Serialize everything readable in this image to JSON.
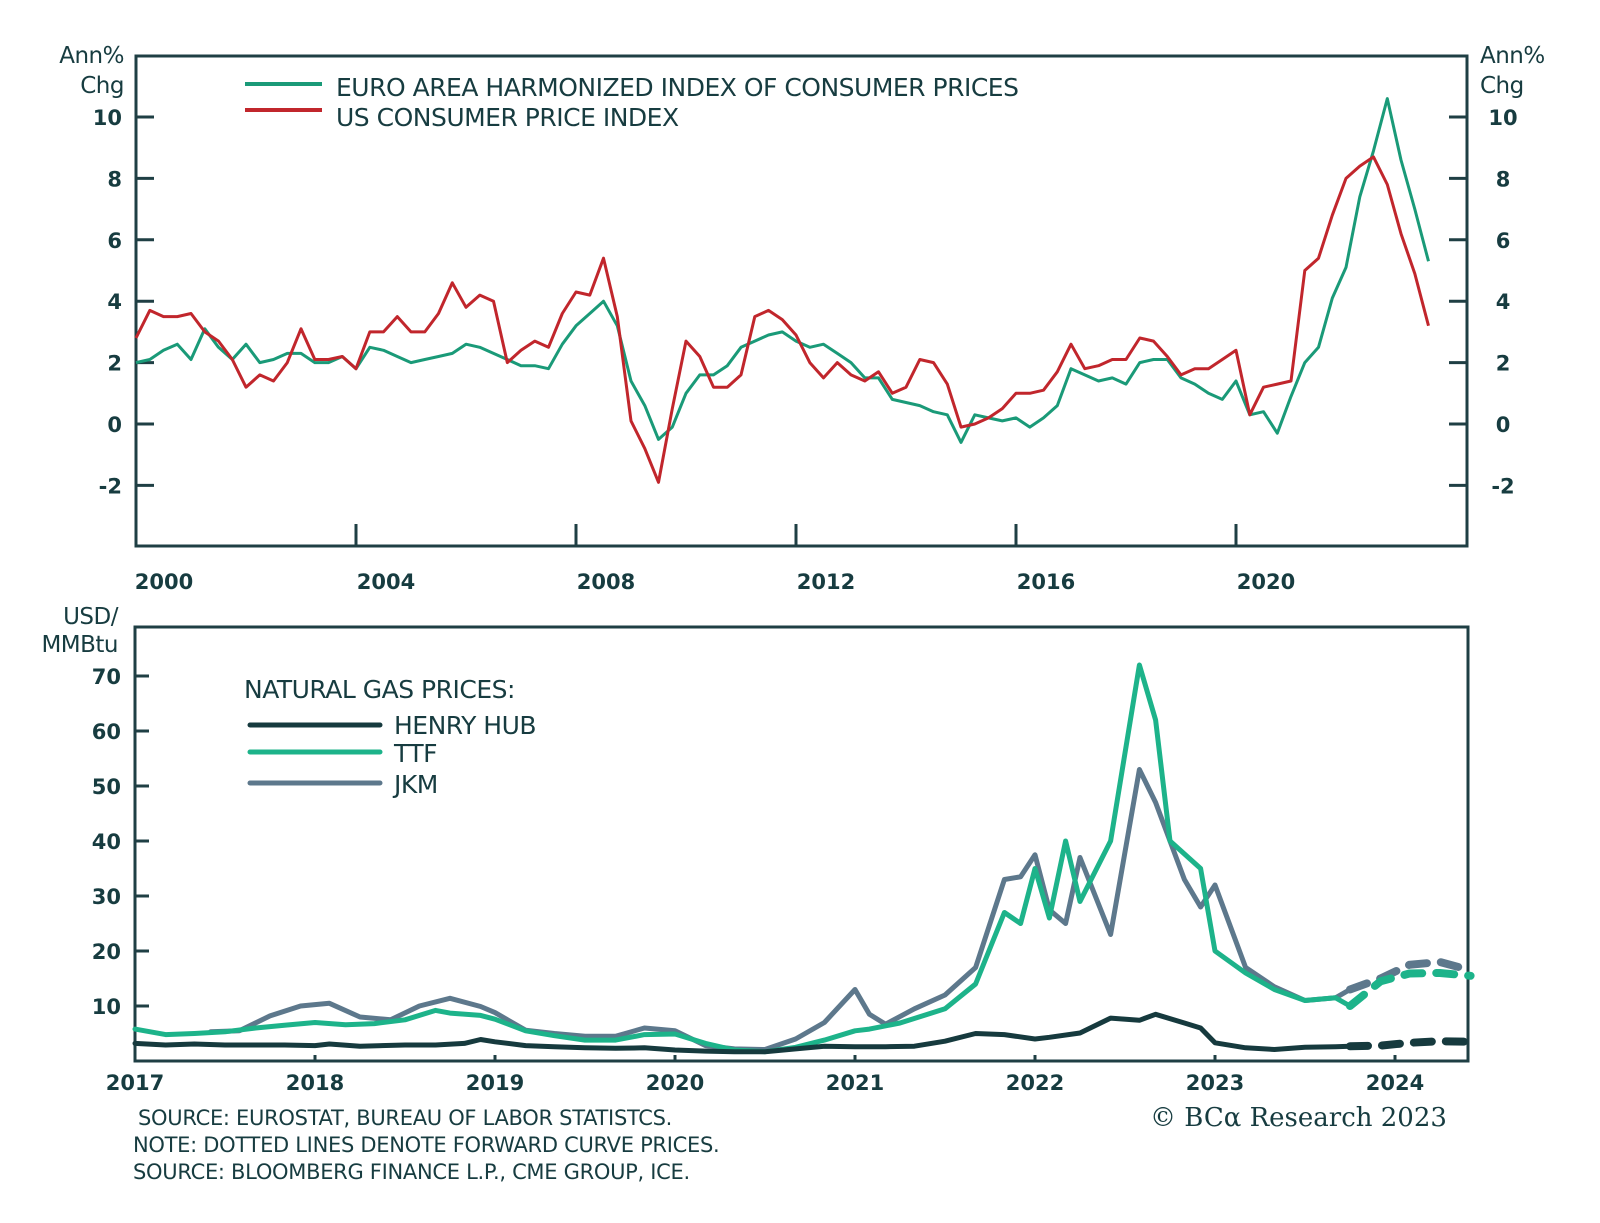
{
  "chart_data": [
    {
      "type": "line",
      "title": "",
      "ylabel_left": [
        "Ann%",
        "Chg"
      ],
      "ylabel_right": [
        "Ann%",
        "Chg"
      ],
      "xlabel": "",
      "ylim": [
        -4,
        12
      ],
      "yticks": [
        -2,
        0,
        2,
        4,
        6,
        8,
        10
      ],
      "xlim": [
        2000,
        2024
      ],
      "xticks": [
        2000,
        2004,
        2008,
        2012,
        2016,
        2020
      ],
      "legend_placement": "top-left",
      "series": [
        {
          "name": "EURO AREA HARMONIZED INDEX OF CONSUMER PRICES",
          "color": "#1a9a78",
          "x": [
            2000.0,
            2000.25,
            2000.5,
            2000.75,
            2001.0,
            2001.25,
            2001.5,
            2001.75,
            2002.0,
            2002.25,
            2002.5,
            2002.75,
            2003.0,
            2003.25,
            2003.5,
            2003.75,
            2004.0,
            2004.25,
            2004.5,
            2004.75,
            2005.0,
            2005.25,
            2005.5,
            2005.75,
            2006.0,
            2006.25,
            2006.5,
            2006.75,
            2007.0,
            2007.25,
            2007.5,
            2007.75,
            2008.0,
            2008.25,
            2008.5,
            2008.75,
            2009.0,
            2009.25,
            2009.5,
            2009.75,
            2010.0,
            2010.25,
            2010.5,
            2010.75,
            2011.0,
            2011.25,
            2011.5,
            2011.75,
            2012.0,
            2012.25,
            2012.5,
            2012.75,
            2013.0,
            2013.25,
            2013.5,
            2013.75,
            2014.0,
            2014.25,
            2014.5,
            2014.75,
            2015.0,
            2015.25,
            2015.5,
            2015.75,
            2016.0,
            2016.25,
            2016.5,
            2016.75,
            2017.0,
            2017.25,
            2017.5,
            2017.75,
            2018.0,
            2018.25,
            2018.5,
            2018.75,
            2019.0,
            2019.25,
            2019.5,
            2019.75,
            2020.0,
            2020.25,
            2020.5,
            2020.75,
            2021.0,
            2021.25,
            2021.5,
            2021.75,
            2022.0,
            2022.25,
            2022.5,
            2022.75,
            2023.0,
            2023.25,
            2023.5
          ],
          "values": [
            2.0,
            2.1,
            2.4,
            2.6,
            2.1,
            3.1,
            2.5,
            2.1,
            2.6,
            2.0,
            2.1,
            2.3,
            2.3,
            2.0,
            2.0,
            2.2,
            1.8,
            2.5,
            2.4,
            2.2,
            2.0,
            2.1,
            2.2,
            2.3,
            2.6,
            2.5,
            2.3,
            2.1,
            1.9,
            1.9,
            1.8,
            2.6,
            3.2,
            3.6,
            4.0,
            3.2,
            1.4,
            0.6,
            -0.5,
            -0.1,
            1.0,
            1.6,
            1.6,
            1.9,
            2.5,
            2.7,
            2.9,
            3.0,
            2.7,
            2.5,
            2.6,
            2.3,
            2.0,
            1.5,
            1.5,
            0.8,
            0.7,
            0.6,
            0.4,
            0.3,
            -0.6,
            0.3,
            0.2,
            0.1,
            0.2,
            -0.1,
            0.2,
            0.6,
            1.8,
            1.6,
            1.4,
            1.5,
            1.3,
            2.0,
            2.1,
            2.1,
            1.5,
            1.3,
            1.0,
            0.8,
            1.4,
            0.3,
            0.4,
            -0.3,
            0.9,
            2.0,
            2.5,
            4.1,
            5.1,
            7.4,
            8.9,
            10.6,
            8.6,
            7.0,
            5.3
          ]
        },
        {
          "name": "US CONSUMER PRICE INDEX",
          "color": "#c1262c",
          "x": [
            2000.0,
            2000.25,
            2000.5,
            2000.75,
            2001.0,
            2001.25,
            2001.5,
            2001.75,
            2002.0,
            2002.25,
            2002.5,
            2002.75,
            2003.0,
            2003.25,
            2003.5,
            2003.75,
            2004.0,
            2004.25,
            2004.5,
            2004.75,
            2005.0,
            2005.25,
            2005.5,
            2005.75,
            2006.0,
            2006.25,
            2006.5,
            2006.75,
            2007.0,
            2007.25,
            2007.5,
            2007.75,
            2008.0,
            2008.25,
            2008.5,
            2008.75,
            2009.0,
            2009.25,
            2009.5,
            2009.75,
            2010.0,
            2010.25,
            2010.5,
            2010.75,
            2011.0,
            2011.25,
            2011.5,
            2011.75,
            2012.0,
            2012.25,
            2012.5,
            2012.75,
            2013.0,
            2013.25,
            2013.5,
            2013.75,
            2014.0,
            2014.25,
            2014.5,
            2014.75,
            2015.0,
            2015.25,
            2015.5,
            2015.75,
            2016.0,
            2016.25,
            2016.5,
            2016.75,
            2017.0,
            2017.25,
            2017.5,
            2017.75,
            2018.0,
            2018.25,
            2018.5,
            2018.75,
            2019.0,
            2019.25,
            2019.5,
            2019.75,
            2020.0,
            2020.25,
            2020.5,
            2020.75,
            2021.0,
            2021.25,
            2021.5,
            2021.75,
            2022.0,
            2022.25,
            2022.5,
            2022.75,
            2023.0,
            2023.25,
            2023.5
          ],
          "values": [
            2.8,
            3.7,
            3.5,
            3.5,
            3.6,
            3.0,
            2.7,
            2.1,
            1.2,
            1.6,
            1.4,
            2.0,
            3.1,
            2.1,
            2.1,
            2.2,
            1.8,
            3.0,
            3.0,
            3.5,
            3.0,
            3.0,
            3.6,
            4.6,
            3.8,
            4.2,
            4.0,
            2.0,
            2.4,
            2.7,
            2.5,
            3.6,
            4.3,
            4.2,
            5.4,
            3.5,
            0.1,
            -0.8,
            -1.9,
            0.5,
            2.7,
            2.2,
            1.2,
            1.2,
            1.6,
            3.5,
            3.7,
            3.4,
            2.9,
            2.0,
            1.5,
            2.0,
            1.6,
            1.4,
            1.7,
            1.0,
            1.2,
            2.1,
            2.0,
            1.3,
            -0.1,
            0.0,
            0.2,
            0.5,
            1.0,
            1.0,
            1.1,
            1.7,
            2.6,
            1.8,
            1.9,
            2.1,
            2.1,
            2.8,
            2.7,
            2.2,
            1.6,
            1.8,
            1.8,
            2.1,
            2.4,
            0.3,
            1.2,
            1.3,
            1.4,
            5.0,
            5.4,
            6.8,
            8.0,
            8.4,
            8.7,
            7.8,
            6.2,
            4.9,
            3.2
          ]
        }
      ]
    },
    {
      "type": "line",
      "title": "",
      "ylabel": [
        "USD/",
        "MMBtu"
      ],
      "xlabel": "",
      "ylim": [
        0,
        80
      ],
      "yticks": [
        10,
        20,
        30,
        40,
        50,
        60,
        70
      ],
      "xlim": [
        2017,
        2024.6
      ],
      "xticks": [
        2017,
        2018,
        2019,
        2020,
        2021,
        2022,
        2023,
        2024
      ],
      "legend_title": "NATURAL GAS PRICES:",
      "legend_placement": "top-left",
      "series": [
        {
          "name": "HENRY HUB",
          "color": "#163a3e",
          "x": [
            2017.0,
            2017.17,
            2017.33,
            2017.5,
            2017.67,
            2017.83,
            2018.0,
            2018.08,
            2018.25,
            2018.5,
            2018.67,
            2018.83,
            2018.92,
            2019.0,
            2019.17,
            2019.33,
            2019.5,
            2019.67,
            2019.83,
            2020.0,
            2020.17,
            2020.33,
            2020.5,
            2020.67,
            2020.83,
            2021.0,
            2021.17,
            2021.33,
            2021.5,
            2021.67,
            2021.83,
            2022.0,
            2022.08,
            2022.25,
            2022.42,
            2022.58,
            2022.67,
            2022.83,
            2022.92,
            2023.0,
            2023.17,
            2023.33,
            2023.5,
            2023.67,
            2023.75
          ],
          "values": [
            3.2,
            2.9,
            3.1,
            2.9,
            2.9,
            2.9,
            2.8,
            3.1,
            2.7,
            2.9,
            2.9,
            3.2,
            3.9,
            3.5,
            2.8,
            2.6,
            2.4,
            2.3,
            2.4,
            2.0,
            1.8,
            1.7,
            1.7,
            2.2,
            2.7,
            2.6,
            2.6,
            2.7,
            3.6,
            5.0,
            4.8,
            4.0,
            4.3,
            5.1,
            7.8,
            7.4,
            8.5,
            6.9,
            6.0,
            3.3,
            2.4,
            2.1,
            2.5,
            2.6,
            2.7
          ],
          "forward": {
            "x": [
              2023.75,
              2023.92,
              2024.08,
              2024.25,
              2024.42
            ],
            "values": [
              2.7,
              2.8,
              3.3,
              3.6,
              3.5
            ]
          }
        },
        {
          "name": "TTF",
          "color": "#1db38a",
          "x": [
            2017.0,
            2017.17,
            2017.33,
            2017.5,
            2017.67,
            2017.83,
            2018.0,
            2018.17,
            2018.33,
            2018.5,
            2018.67,
            2018.75,
            2018.92,
            2019.0,
            2019.17,
            2019.33,
            2019.5,
            2019.67,
            2019.83,
            2020.0,
            2020.17,
            2020.33,
            2020.5,
            2020.67,
            2020.83,
            2021.0,
            2021.08,
            2021.25,
            2021.5,
            2021.67,
            2021.83,
            2021.92,
            2022.0,
            2022.08,
            2022.17,
            2022.25,
            2022.42,
            2022.58,
            2022.67,
            2022.75,
            2022.92,
            2023.0,
            2023.17,
            2023.33,
            2023.5,
            2023.67,
            2023.75
          ],
          "values": [
            5.8,
            4.8,
            5.0,
            5.3,
            6.0,
            6.5,
            7.0,
            6.6,
            6.8,
            7.5,
            9.2,
            8.7,
            8.3,
            7.6,
            5.5,
            4.6,
            3.8,
            3.8,
            4.8,
            4.9,
            3.2,
            2.0,
            1.7,
            2.5,
            3.8,
            5.5,
            5.8,
            6.9,
            9.5,
            14.0,
            27.0,
            25.0,
            35.0,
            26.0,
            40.0,
            29.0,
            40.0,
            72.0,
            62.0,
            40.0,
            35.0,
            20.0,
            16.0,
            13.0,
            11.0,
            11.5,
            10.0
          ],
          "forward": {
            "x": [
              2023.75,
              2023.92,
              2024.08,
              2024.25,
              2024.42
            ],
            "values": [
              10.0,
              14.5,
              15.9,
              16.0,
              15.5
            ]
          }
        },
        {
          "name": "JKM",
          "color": "#5d788c",
          "x": [
            2017.42,
            2017.58,
            2017.75,
            2017.92,
            2018.08,
            2018.25,
            2018.42,
            2018.58,
            2018.75,
            2018.92,
            2019.0,
            2019.17,
            2019.33,
            2019.5,
            2019.67,
            2019.83,
            2020.0,
            2020.17,
            2020.33,
            2020.5,
            2020.67,
            2020.83,
            2021.0,
            2021.08,
            2021.17,
            2021.33,
            2021.5,
            2021.67,
            2021.83,
            2021.92,
            2022.0,
            2022.08,
            2022.17,
            2022.25,
            2022.42,
            2022.58,
            2022.67,
            2022.83,
            2022.92,
            2023.0,
            2023.17,
            2023.33,
            2023.5,
            2023.67,
            2023.75
          ],
          "values": [
            5.3,
            5.5,
            8.2,
            10.0,
            10.5,
            8.0,
            7.5,
            10.0,
            11.4,
            9.9,
            8.8,
            5.6,
            5.0,
            4.5,
            4.5,
            6.0,
            5.5,
            2.8,
            2.2,
            2.1,
            4.0,
            7.0,
            13.0,
            8.5,
            6.7,
            9.5,
            12.0,
            17.0,
            33.0,
            33.5,
            37.5,
            27.5,
            25.0,
            37.0,
            23.0,
            53.0,
            47.0,
            33.0,
            28.0,
            32.0,
            17.0,
            13.5,
            11.0,
            11.5,
            13.0
          ],
          "forward": {
            "x": [
              2023.75,
              2023.92,
              2024.08,
              2024.25,
              2024.42
            ],
            "values": [
              13.0,
              15.0,
              17.5,
              18.0,
              16.5
            ]
          }
        }
      ]
    }
  ],
  "footer": {
    "source_top": "SOURCE: EUROSTAT, BUREAU OF LABOR STATISTCS.",
    "note": "NOTE: DOTTED LINES DENOTE FORWARD CURVE PRICES.",
    "source_bottom": "SOURCE: BLOOMBERG FINANCE L.P., CME GROUP, ICE.",
    "copyright": "© BCα Research 2023"
  }
}
